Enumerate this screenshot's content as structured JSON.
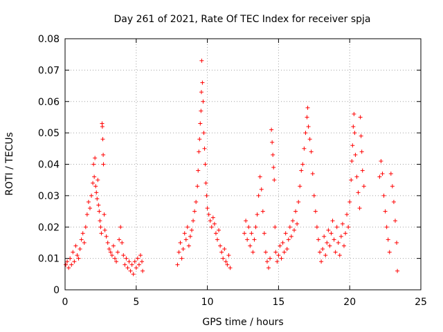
{
  "chart_data": {
    "type": "scatter",
    "title": "Day 261 of 2021, Rate Of TEC Index for receiver spja",
    "xlabel": "GPS time / hours",
    "ylabel": "ROTI / TECUs",
    "xlim": [
      0,
      25
    ],
    "ylim": [
      0,
      0.08
    ],
    "xticks": [
      0,
      5,
      10,
      15,
      20,
      25
    ],
    "xtick_labels": [
      "0",
      "5",
      "10",
      "15",
      "20",
      "25"
    ],
    "yticks": [
      0,
      0.01,
      0.02,
      0.03,
      0.04,
      0.05,
      0.06,
      0.07,
      0.08
    ],
    "ytick_labels": [
      "0",
      "0.01",
      "0.02",
      "0.03",
      "0.04",
      "0.05",
      "0.06",
      "0.07",
      "0.08"
    ],
    "grid": true,
    "marker": "plus",
    "color": "#ff0000",
    "series": [
      {
        "name": "ROTI",
        "points": [
          [
            0.05,
            0.008
          ],
          [
            0.15,
            0.009
          ],
          [
            0.25,
            0.007
          ],
          [
            0.35,
            0.01
          ],
          [
            0.45,
            0.008
          ],
          [
            0.55,
            0.012
          ],
          [
            0.65,
            0.009
          ],
          [
            0.75,
            0.014
          ],
          [
            0.85,
            0.011
          ],
          [
            0.95,
            0.01
          ],
          [
            1.05,
            0.013
          ],
          [
            1.15,
            0.016
          ],
          [
            1.25,
            0.018
          ],
          [
            1.35,
            0.015
          ],
          [
            1.45,
            0.02
          ],
          [
            1.55,
            0.024
          ],
          [
            1.65,
            0.028
          ],
          [
            1.75,
            0.026
          ],
          [
            1.85,
            0.03
          ],
          [
            1.95,
            0.034
          ],
          [
            2.0,
            0.04
          ],
          [
            2.05,
            0.036
          ],
          [
            2.1,
            0.042
          ],
          [
            2.15,
            0.033
          ],
          [
            2.2,
            0.031
          ],
          [
            2.25,
            0.029
          ],
          [
            2.3,
            0.035
          ],
          [
            2.35,
            0.027
          ],
          [
            2.4,
            0.025
          ],
          [
            2.45,
            0.022
          ],
          [
            2.5,
            0.02
          ],
          [
            2.55,
            0.018
          ],
          [
            2.6,
            0.053
          ],
          [
            2.62,
            0.052
          ],
          [
            2.65,
            0.048
          ],
          [
            2.68,
            0.043
          ],
          [
            2.7,
            0.04
          ],
          [
            2.75,
            0.024
          ],
          [
            2.8,
            0.019
          ],
          [
            2.9,
            0.017
          ],
          [
            3.0,
            0.015
          ],
          [
            3.1,
            0.013
          ],
          [
            3.2,
            0.012
          ],
          [
            3.3,
            0.011
          ],
          [
            3.4,
            0.014
          ],
          [
            3.5,
            0.01
          ],
          [
            3.6,
            0.009
          ],
          [
            3.7,
            0.012
          ],
          [
            3.8,
            0.016
          ],
          [
            3.9,
            0.02
          ],
          [
            4.0,
            0.015
          ],
          [
            4.1,
            0.011
          ],
          [
            4.2,
            0.008
          ],
          [
            4.3,
            0.01
          ],
          [
            4.4,
            0.007
          ],
          [
            4.5,
            0.009
          ],
          [
            4.6,
            0.006
          ],
          [
            4.7,
            0.008
          ],
          [
            4.8,
            0.005
          ],
          [
            4.9,
            0.009
          ],
          [
            5.0,
            0.007
          ],
          [
            5.1,
            0.01
          ],
          [
            5.2,
            0.008
          ],
          [
            5.3,
            0.011
          ],
          [
            5.4,
            0.009
          ],
          [
            5.45,
            0.006
          ],
          [
            7.9,
            0.008
          ],
          [
            8.0,
            0.012
          ],
          [
            8.1,
            0.015
          ],
          [
            8.2,
            0.01
          ],
          [
            8.3,
            0.013
          ],
          [
            8.4,
            0.018
          ],
          [
            8.5,
            0.016
          ],
          [
            8.6,
            0.02
          ],
          [
            8.7,
            0.014
          ],
          [
            8.8,
            0.017
          ],
          [
            8.9,
            0.019
          ],
          [
            9.0,
            0.022
          ],
          [
            9.1,
            0.025
          ],
          [
            9.2,
            0.028
          ],
          [
            9.3,
            0.033
          ],
          [
            9.35,
            0.038
          ],
          [
            9.4,
            0.044
          ],
          [
            9.45,
            0.048
          ],
          [
            9.5,
            0.053
          ],
          [
            9.55,
            0.057
          ],
          [
            9.58,
            0.063
          ],
          [
            9.6,
            0.073
          ],
          [
            9.65,
            0.066
          ],
          [
            9.7,
            0.06
          ],
          [
            9.75,
            0.05
          ],
          [
            9.8,
            0.045
          ],
          [
            9.85,
            0.04
          ],
          [
            9.9,
            0.034
          ],
          [
            9.95,
            0.03
          ],
          [
            10.0,
            0.026
          ],
          [
            10.1,
            0.024
          ],
          [
            10.2,
            0.022
          ],
          [
            10.3,
            0.02
          ],
          [
            10.4,
            0.023
          ],
          [
            10.5,
            0.021
          ],
          [
            10.6,
            0.018
          ],
          [
            10.7,
            0.016
          ],
          [
            10.8,
            0.019
          ],
          [
            10.9,
            0.014
          ],
          [
            11.0,
            0.012
          ],
          [
            11.1,
            0.01
          ],
          [
            11.2,
            0.013
          ],
          [
            11.3,
            0.009
          ],
          [
            11.4,
            0.008
          ],
          [
            11.5,
            0.011
          ],
          [
            11.6,
            0.007
          ],
          [
            12.6,
            0.018
          ],
          [
            12.7,
            0.022
          ],
          [
            12.8,
            0.016
          ],
          [
            12.9,
            0.02
          ],
          [
            13.0,
            0.014
          ],
          [
            13.1,
            0.018
          ],
          [
            13.2,
            0.012
          ],
          [
            13.3,
            0.016
          ],
          [
            13.4,
            0.02
          ],
          [
            13.5,
            0.024
          ],
          [
            13.6,
            0.03
          ],
          [
            13.7,
            0.036
          ],
          [
            13.8,
            0.032
          ],
          [
            13.9,
            0.025
          ],
          [
            14.0,
            0.018
          ],
          [
            14.1,
            0.012
          ],
          [
            14.2,
            0.009
          ],
          [
            14.3,
            0.007
          ],
          [
            14.4,
            0.01
          ],
          [
            14.5,
            0.051
          ],
          [
            14.55,
            0.047
          ],
          [
            14.6,
            0.043
          ],
          [
            14.65,
            0.039
          ],
          [
            14.7,
            0.035
          ],
          [
            14.75,
            0.02
          ],
          [
            14.8,
            0.012
          ],
          [
            14.9,
            0.009
          ],
          [
            15.0,
            0.011
          ],
          [
            15.1,
            0.014
          ],
          [
            15.2,
            0.01
          ],
          [
            15.3,
            0.015
          ],
          [
            15.4,
            0.012
          ],
          [
            15.5,
            0.018
          ],
          [
            15.6,
            0.013
          ],
          [
            15.7,
            0.016
          ],
          [
            15.8,
            0.02
          ],
          [
            15.9,
            0.017
          ],
          [
            16.0,
            0.022
          ],
          [
            16.1,
            0.019
          ],
          [
            16.2,
            0.025
          ],
          [
            16.3,
            0.021
          ],
          [
            16.4,
            0.028
          ],
          [
            16.5,
            0.033
          ],
          [
            16.6,
            0.038
          ],
          [
            16.7,
            0.04
          ],
          [
            16.8,
            0.045
          ],
          [
            16.9,
            0.05
          ],
          [
            17.0,
            0.055
          ],
          [
            17.05,
            0.058
          ],
          [
            17.1,
            0.052
          ],
          [
            17.2,
            0.048
          ],
          [
            17.3,
            0.044
          ],
          [
            17.4,
            0.037
          ],
          [
            17.5,
            0.03
          ],
          [
            17.6,
            0.025
          ],
          [
            17.7,
            0.02
          ],
          [
            17.8,
            0.016
          ],
          [
            17.9,
            0.012
          ],
          [
            18.0,
            0.009
          ],
          [
            18.1,
            0.013
          ],
          [
            18.2,
            0.017
          ],
          [
            18.3,
            0.011
          ],
          [
            18.4,
            0.015
          ],
          [
            18.5,
            0.019
          ],
          [
            18.6,
            0.014
          ],
          [
            18.7,
            0.018
          ],
          [
            18.8,
            0.022
          ],
          [
            18.9,
            0.016
          ],
          [
            19.0,
            0.012
          ],
          [
            19.1,
            0.02
          ],
          [
            19.2,
            0.015
          ],
          [
            19.3,
            0.011
          ],
          [
            19.4,
            0.017
          ],
          [
            19.5,
            0.021
          ],
          [
            19.6,
            0.014
          ],
          [
            19.7,
            0.018
          ],
          [
            19.8,
            0.024
          ],
          [
            19.9,
            0.02
          ],
          [
            20.0,
            0.028
          ],
          [
            20.1,
            0.035
          ],
          [
            20.15,
            0.041
          ],
          [
            20.2,
            0.046
          ],
          [
            20.25,
            0.052
          ],
          [
            20.3,
            0.056
          ],
          [
            20.35,
            0.05
          ],
          [
            20.4,
            0.043
          ],
          [
            20.5,
            0.036
          ],
          [
            20.6,
            0.031
          ],
          [
            20.7,
            0.026
          ],
          [
            20.75,
            0.055
          ],
          [
            20.8,
            0.049
          ],
          [
            20.85,
            0.044
          ],
          [
            20.9,
            0.038
          ],
          [
            21.0,
            0.033
          ],
          [
            22.1,
            0.036
          ],
          [
            22.2,
            0.041
          ],
          [
            22.3,
            0.037
          ],
          [
            22.4,
            0.03
          ],
          [
            22.5,
            0.025
          ],
          [
            22.6,
            0.02
          ],
          [
            22.7,
            0.016
          ],
          [
            22.8,
            0.012
          ],
          [
            22.9,
            0.037
          ],
          [
            23.0,
            0.033
          ],
          [
            23.1,
            0.028
          ],
          [
            23.2,
            0.022
          ],
          [
            23.3,
            0.015
          ],
          [
            23.35,
            0.006
          ]
        ]
      }
    ]
  }
}
